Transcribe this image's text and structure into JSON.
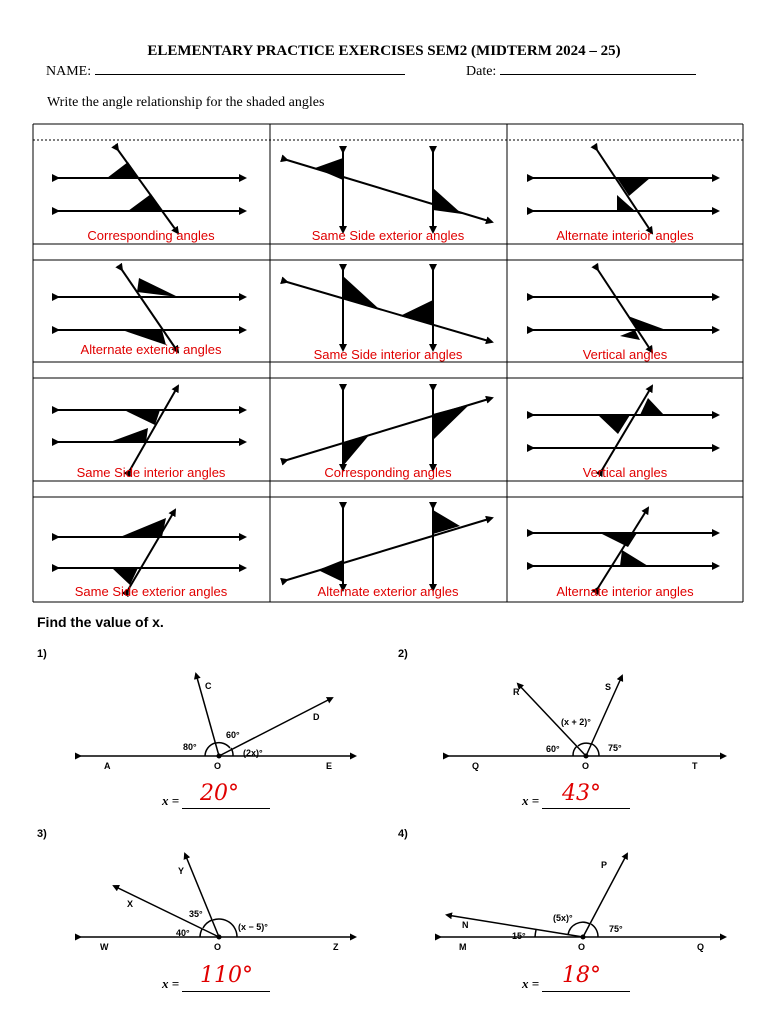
{
  "header": {
    "title": "ELEMENTARY PRACTICE EXERCISES SEM2 (MIDTERM 2024 – 25)",
    "name_label": "NAME:",
    "date_label": "Date:"
  },
  "instruction": "Write the angle relationship for the shaded angles",
  "cells": [
    {
      "label": "Corresponding angles"
    },
    {
      "label": "Same Side exterior angles"
    },
    {
      "label": "Alternate interior angles"
    },
    {
      "label": "Alternate exterior angles"
    },
    {
      "label": "Same Side interior angles"
    },
    {
      "label": "Vertical angles"
    },
    {
      "label": "Same Side interior angles"
    },
    {
      "label": "Corresponding angles"
    },
    {
      "label": "Vertical angles"
    },
    {
      "label": "Same Side exterior angles"
    },
    {
      "label": "Alternate exterior angles"
    },
    {
      "label": "Alternate interior angles"
    }
  ],
  "find_heading": "Find the value of x.",
  "problems": [
    {
      "number": "1)",
      "points": {
        "left": "A",
        "right": "E",
        "center": "O",
        "ray1": "C",
        "ray2": "D"
      },
      "angles": [
        "80°",
        "60°",
        "(2x)°"
      ],
      "answer_prefix": "x =",
      "answer": "20°"
    },
    {
      "number": "2)",
      "points": {
        "left": "Q",
        "right": "T",
        "center": "O",
        "ray1": "R",
        "ray2": "S"
      },
      "angles": [
        "60°",
        "(x + 2)°",
        "75°"
      ],
      "answer_prefix": "x =",
      "answer": "43°"
    },
    {
      "number": "3)",
      "points": {
        "left": "W",
        "right": "Z",
        "center": "O",
        "ray1": "X",
        "ray2": "Y"
      },
      "angles": [
        "40°",
        "35°",
        "(x − 5)°"
      ],
      "answer_prefix": "x =",
      "answer": "110°"
    },
    {
      "number": "4)",
      "points": {
        "left": "M",
        "right": "Q",
        "center": "O",
        "ray1": "N",
        "ray2": "P"
      },
      "angles": [
        "15°",
        "(5x)°",
        "75°"
      ],
      "answer_prefix": "x =",
      "answer": "18°"
    }
  ]
}
